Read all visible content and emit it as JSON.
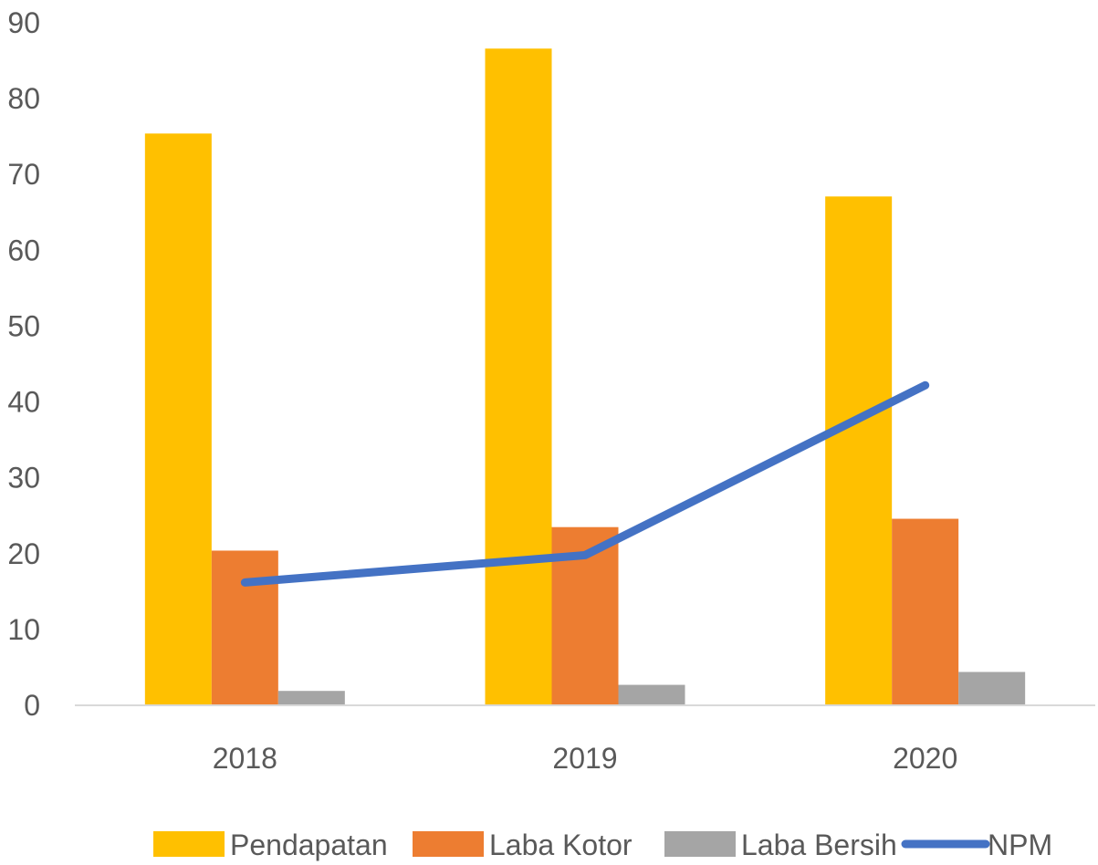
{
  "chart_data": {
    "type": "bar",
    "categories": [
      "2018",
      "2019",
      "2020"
    ],
    "series": [
      {
        "name": "Pendapatan",
        "type": "bar",
        "color": "#FFC000",
        "values": [
          75.4,
          86.6,
          67.1
        ]
      },
      {
        "name": "Laba Kotor",
        "type": "bar",
        "color": "#ED7D31",
        "values": [
          20.4,
          23.5,
          24.6
        ]
      },
      {
        "name": "Laba Bersih",
        "type": "bar",
        "color": "#A5A5A5",
        "values": [
          1.9,
          2.7,
          4.4
        ]
      },
      {
        "name": "NPM",
        "type": "line",
        "color": "#4472C4",
        "values": [
          16.2,
          19.8,
          42.2
        ]
      }
    ],
    "yticks": [
      "0",
      "10",
      "20",
      "30",
      "40",
      "50",
      "60",
      "70",
      "80",
      "90"
    ],
    "ylim": [
      0,
      90
    ],
    "grid": false,
    "legend": "bottom"
  }
}
